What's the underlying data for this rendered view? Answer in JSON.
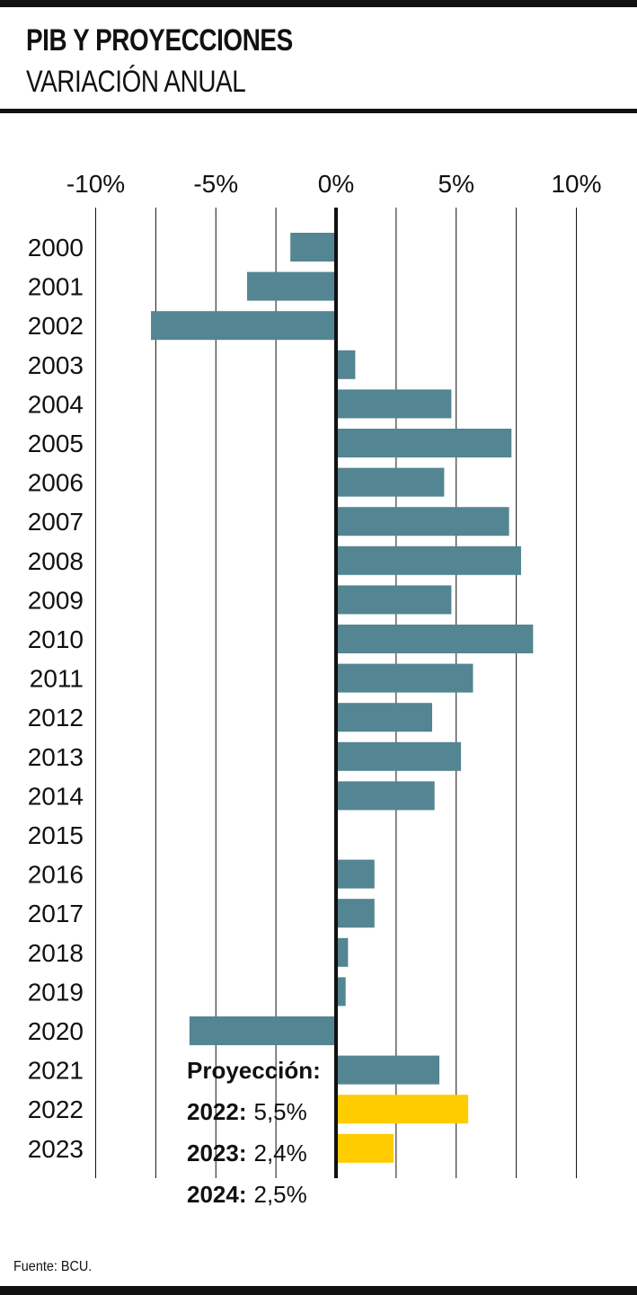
{
  "title": "PIB Y PROYECCIONES",
  "subtitle": "VARIACIÓN ANUAL",
  "source": "Fuente: BCU.",
  "colors": {
    "historical": "#548592",
    "projection": "#ffcc00",
    "grid": "#111111"
  },
  "projection_note": {
    "heading": "Proyección:",
    "items": [
      {
        "year": "2022:",
        "value": "5,5%"
      },
      {
        "year": "2023:",
        "value": "2,4%"
      },
      {
        "year": "2024:",
        "value": "2,5%"
      }
    ]
  },
  "chart_data": {
    "type": "bar",
    "orientation": "horizontal",
    "xlim": [
      -10,
      10
    ],
    "x_ticks": [
      -10,
      -5,
      0,
      5,
      10
    ],
    "x_tick_labels": [
      "-10%",
      "-5%",
      "0%",
      "5%",
      "10%"
    ],
    "grid": true,
    "categories": [
      "2000",
      "2001",
      "2002",
      "2003",
      "2004",
      "2005",
      "2006",
      "2007",
      "2008",
      "2009",
      "2010",
      "2011",
      "2012",
      "2013",
      "2014",
      "2015",
      "2016",
      "2017",
      "2018",
      "2019",
      "2020",
      "2021",
      "2022",
      "2023"
    ],
    "values": [
      -1.9,
      -3.7,
      -7.7,
      0.8,
      4.8,
      7.3,
      4.5,
      7.2,
      7.7,
      4.8,
      8.2,
      5.7,
      4.0,
      5.2,
      4.1,
      0.0,
      1.6,
      1.6,
      0.5,
      0.4,
      -6.1,
      4.3,
      5.5,
      2.4
    ],
    "projection_categories": [
      "2022",
      "2023"
    ]
  }
}
